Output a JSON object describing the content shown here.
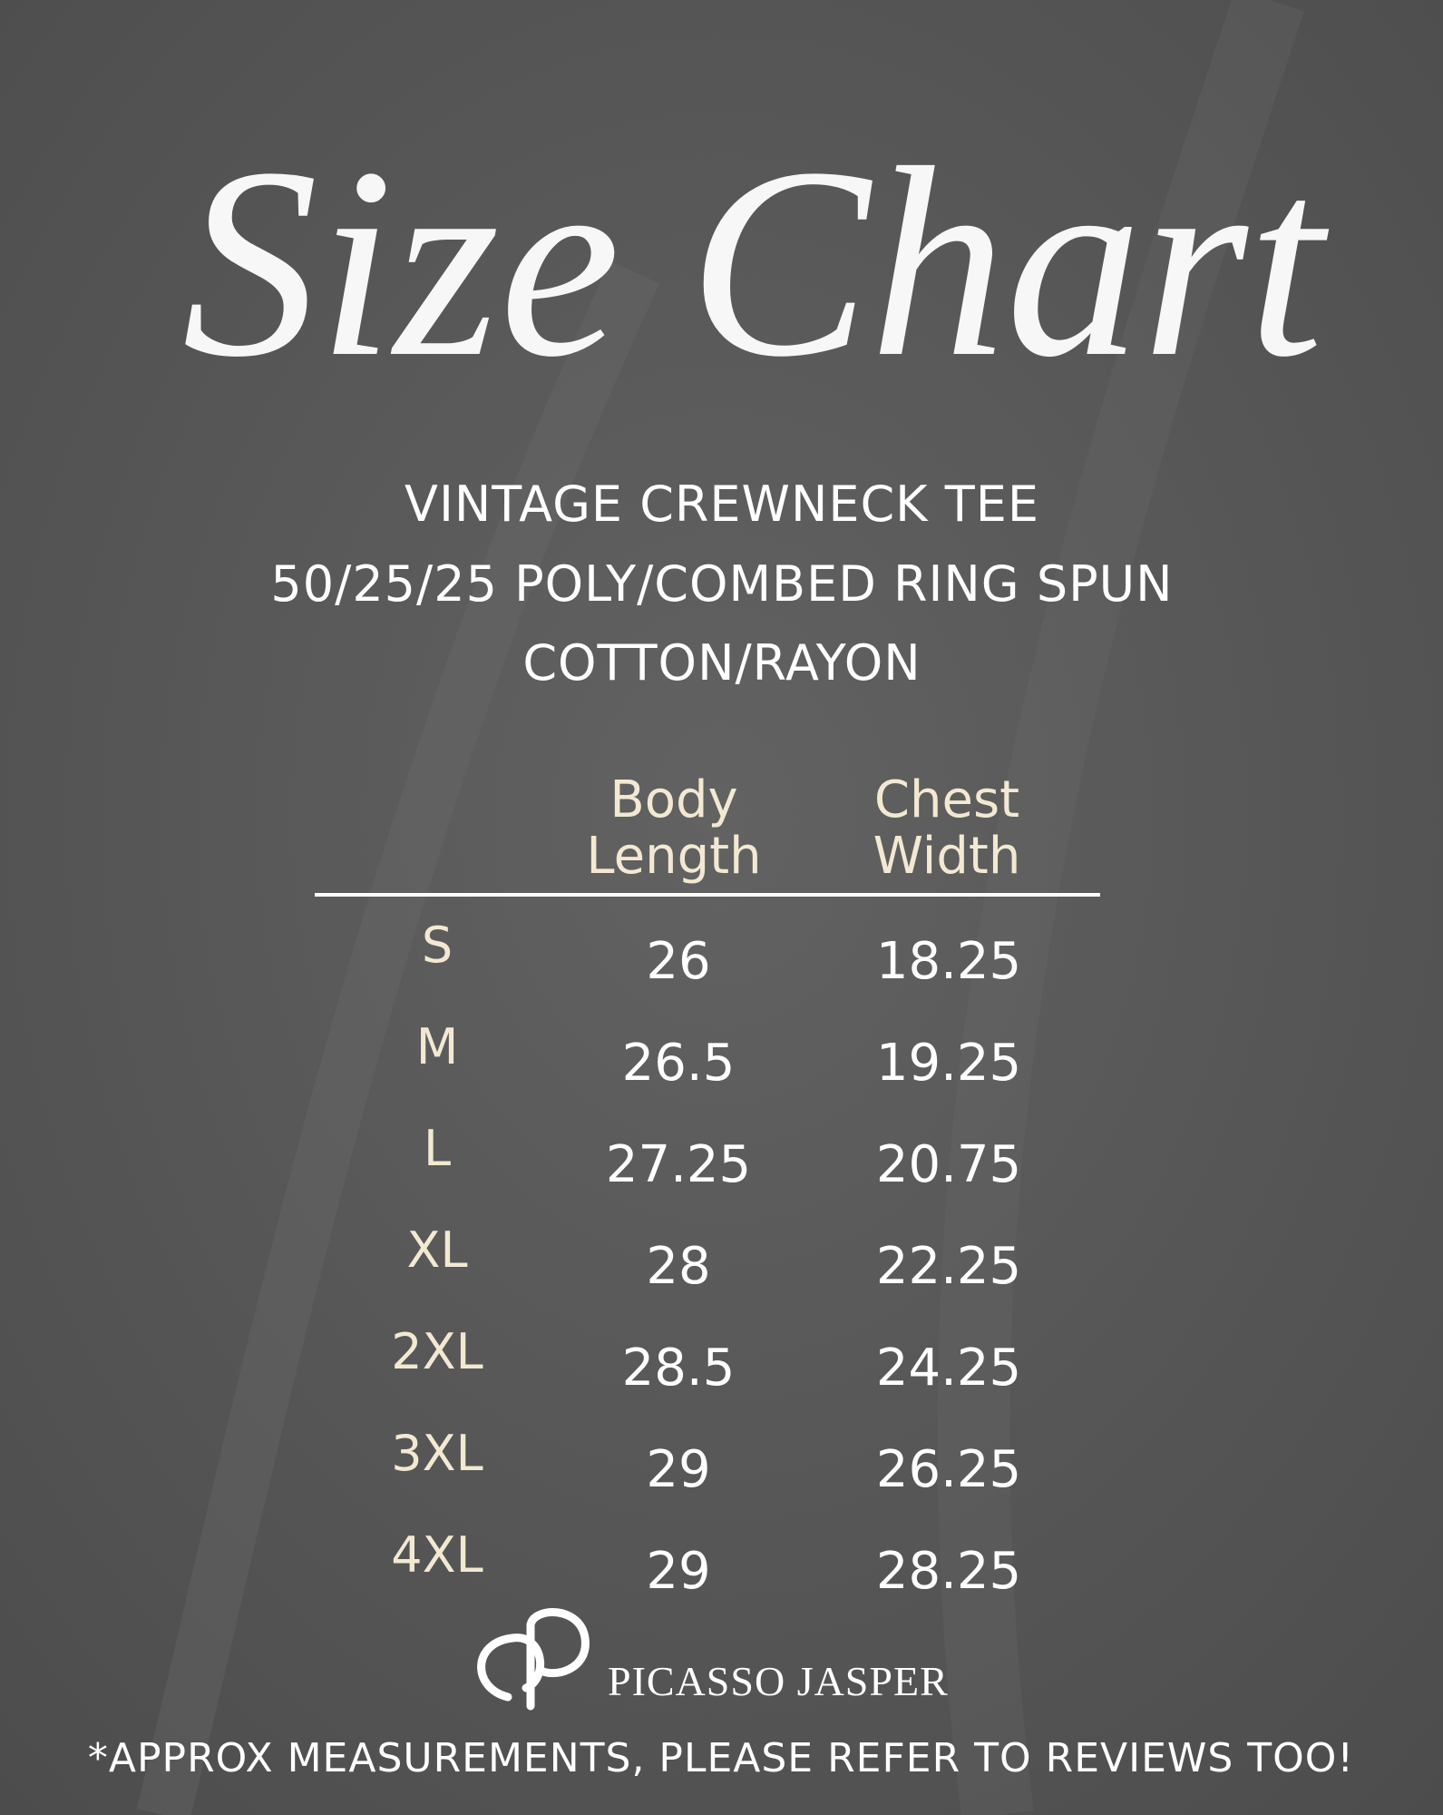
{
  "header": {
    "title": "Size Chart",
    "subtitle": [
      "VINTAGE CREWNECK TEE",
      "50/25/25 POLY/COMBED RING SPUN",
      "COTTON/RAYON"
    ]
  },
  "table": {
    "columns": [
      [
        "Body",
        "Length"
      ],
      [
        "Chest",
        "Width"
      ]
    ],
    "rows": [
      [
        "S",
        26,
        18.25
      ],
      [
        "M",
        26.5,
        19.25
      ],
      [
        "L",
        27.25,
        20.75
      ],
      [
        "XL",
        28,
        22.25
      ],
      [
        "2XL",
        28.5,
        24.25
      ],
      [
        "3XL",
        29,
        26.25
      ],
      [
        "4XL",
        29,
        28.25
      ]
    ]
  },
  "footer": {
    "brand": "PICASSO JASPER",
    "note": "*APPROX MEASUREMENTS, PLEASE REFER TO REVIEWS TOO!"
  }
}
